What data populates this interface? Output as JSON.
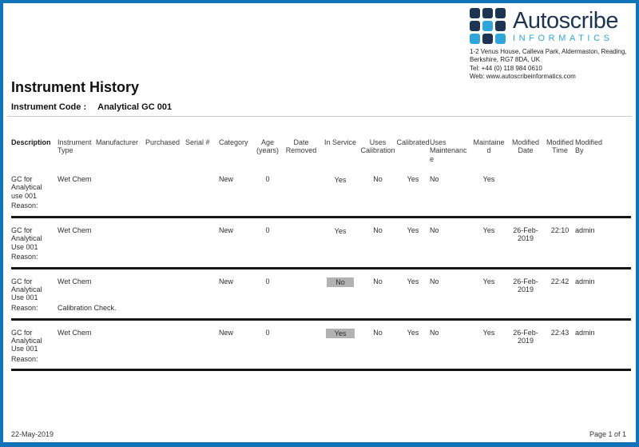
{
  "colors": {
    "page_border_blue": "#1173b8",
    "logo_navy": "#1d3453",
    "logo_cyan": "#2fa5d9",
    "in_service_highlight": "#b2b2b2"
  },
  "logo": {
    "name": "Autoscribe",
    "subname": "INFORMATICS",
    "mark": "grid-of-squares-icon",
    "address_lines": [
      "1-2 Venus House, Calleva Park, Aldermaston, Reading,",
      "Berkshire, RG7 8DA, UK",
      "Tel: +44 (0) 118 984 0610",
      "Web: www.autoscribeinformatics.com"
    ]
  },
  "header": {
    "title": "Instrument History",
    "code_label": "Instrument Code :",
    "code_value": "Analytical GC 001"
  },
  "table": {
    "columns": [
      "Description",
      "Instrument Type",
      "Manufacturer",
      "Purchased",
      "Serial #",
      "Category",
      "Age (years)",
      "Date Removed",
      "In Service",
      "Uses Calibration",
      "Calibrated",
      "Uses Maintenance",
      "Maintained",
      "Modified Date",
      "Modified Time",
      "Modified By"
    ],
    "reason_label": "Reason:",
    "rows": [
      {
        "description": "GC for Analytical use 001",
        "instrument_type": "Wet Chem",
        "manufacturer": "",
        "purchased": "",
        "serial": "",
        "category": "New",
        "age": "0",
        "date_removed": "",
        "in_service": "Yes",
        "in_service_highlighted": false,
        "uses_calibration": "No",
        "calibrated": "Yes",
        "uses_maintenance": "No",
        "maintained": "Yes",
        "modified_date": "",
        "modified_time": "",
        "modified_by": "",
        "reason": ""
      },
      {
        "description": "GC for Analytical Use 001",
        "instrument_type": "Wet Chem",
        "manufacturer": "",
        "purchased": "",
        "serial": "",
        "category": "New",
        "age": "0",
        "date_removed": "",
        "in_service": "Yes",
        "in_service_highlighted": false,
        "uses_calibration": "No",
        "calibrated": "Yes",
        "uses_maintenance": "No",
        "maintained": "Yes",
        "modified_date": "26-Feb-2019",
        "modified_time": "22:10",
        "modified_by": "admin",
        "reason": ""
      },
      {
        "description": "GC for Analytical Use 001",
        "instrument_type": "Wet Chem",
        "manufacturer": "",
        "purchased": "",
        "serial": "",
        "category": "New",
        "age": "0",
        "date_removed": "",
        "in_service": "No",
        "in_service_highlighted": true,
        "uses_calibration": "No",
        "calibrated": "Yes",
        "uses_maintenance": "No",
        "maintained": "Yes",
        "modified_date": "26-Feb-2019",
        "modified_time": "22:42",
        "modified_by": "admin",
        "reason": "Calibration Check."
      },
      {
        "description": "GC for Analytical Use 001",
        "instrument_type": "Wet Chem",
        "manufacturer": "",
        "purchased": "",
        "serial": "",
        "category": "New",
        "age": "0",
        "date_removed": "",
        "in_service": "Yes",
        "in_service_highlighted": true,
        "uses_calibration": "No",
        "calibrated": "Yes",
        "uses_maintenance": "No",
        "maintained": "Yes",
        "modified_date": "26-Feb-2019",
        "modified_time": "22:43",
        "modified_by": "admin",
        "reason": ""
      }
    ]
  },
  "footer": {
    "date": "22-May-2019",
    "page": "Page 1 of 1"
  }
}
